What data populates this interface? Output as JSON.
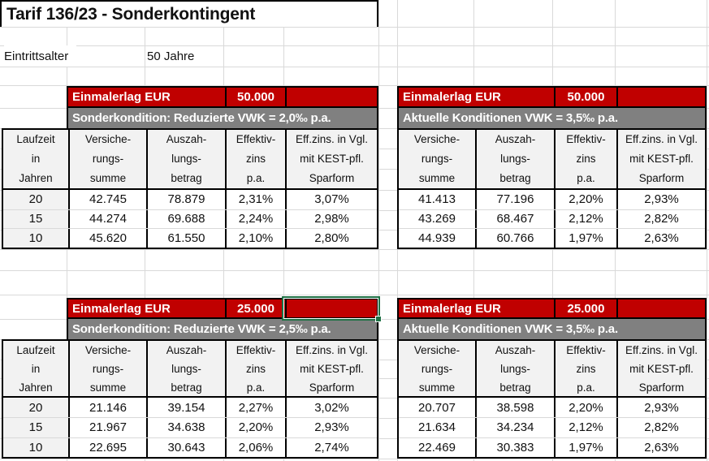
{
  "title": "Tarif 136/23 - Sonderkontingent",
  "entry": {
    "label": "Eintrittsalter",
    "value": "50 Jahre"
  },
  "headers": {
    "laufzeit": "Laufzeit\nin\nJahren",
    "versicherungssumme": "Versiche-\nrungs-\nsumme",
    "auszahlungsbetrag": "Auszah-\nlungs-\nbetrag",
    "effektivzins": "Effektiv-\nzins\np.a.",
    "effzins_vergleich": "Eff.zins. in Vgl.\nmit KEST-pfl.\nSparform"
  },
  "sections": [
    {
      "name": "top-left",
      "einmalerlag_label": "Einmalerlag EUR",
      "einmalerlag_value": "50.000",
      "condition": "Sonderkondition: Reduzierte VWK = 2,0‰ p.a.",
      "rows": [
        [
          "20",
          "42.745",
          "78.879",
          "2,31%",
          "3,07%"
        ],
        [
          "15",
          "44.274",
          "69.688",
          "2,24%",
          "2,98%"
        ],
        [
          "10",
          "45.620",
          "61.550",
          "2,10%",
          "2,80%"
        ]
      ]
    },
    {
      "name": "top-right",
      "einmalerlag_label": "Einmalerlag EUR",
      "einmalerlag_value": "50.000",
      "condition": "Aktuelle Konditionen VWK = 3,5‰ p.a.",
      "rows": [
        [
          "41.413",
          "77.196",
          "2,20%",
          "2,93%"
        ],
        [
          "43.269",
          "68.467",
          "2,12%",
          "2,82%"
        ],
        [
          "44.939",
          "60.766",
          "1,97%",
          "2,63%"
        ]
      ]
    },
    {
      "name": "bottom-left",
      "einmalerlag_label": "Einmalerlag EUR",
      "einmalerlag_value": "25.000",
      "condition": "Sonderkondition: Reduzierte VWK = 2,5‰ p.a.",
      "rows": [
        [
          "20",
          "21.146",
          "39.154",
          "2,27%",
          "3,02%"
        ],
        [
          "15",
          "21.967",
          "34.638",
          "2,20%",
          "2,93%"
        ],
        [
          "10",
          "22.695",
          "30.643",
          "2,06%",
          "2,74%"
        ]
      ]
    },
    {
      "name": "bottom-right",
      "einmalerlag_label": "Einmalerlag EUR",
      "einmalerlag_value": "25.000",
      "condition": "Aktuelle Konditionen VWK = 3,5‰ p.a.",
      "rows": [
        [
          "20.707",
          "38.598",
          "2,20%",
          "2,93%"
        ],
        [
          "21.634",
          "34.234",
          "2,12%",
          "2,82%"
        ],
        [
          "22.469",
          "30.383",
          "1,97%",
          "2,63%"
        ]
      ]
    }
  ],
  "selection": {
    "location": "empty red cell right of 25.000 in bottom-left Einmalerlag band"
  },
  "colors": {
    "band_red": "#C00000",
    "band_gray": "#808080",
    "header_bg": "#F2F2F2",
    "selection_green": "#1E7145",
    "gridline": "#D9D9D9"
  }
}
